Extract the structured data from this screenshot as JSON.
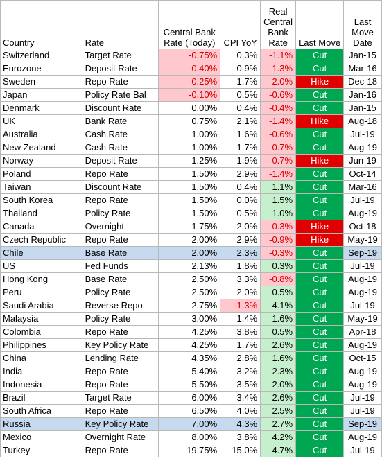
{
  "headers": {
    "country": "Country",
    "rate": "Rate",
    "cb_rate": [
      "Central Bank",
      "Rate (Today)"
    ],
    "cpi": "CPI YoY",
    "real_rate": [
      "Real",
      "Central",
      "Bank",
      "Rate"
    ],
    "last_move": "Last Move",
    "last_move_date": [
      "Last",
      "Move",
      "Date"
    ]
  },
  "colors": {
    "negative_tint": "#ffc7ce",
    "positive_tint": "#c6efce",
    "negative_text": "#d40000",
    "cut": "#00a651",
    "hike": "#e00000",
    "highlight_row": "#c5d9ef"
  },
  "rows": [
    {
      "country": "Switzerland",
      "rate": "Target Rate",
      "cb": "-0.75%",
      "cpi": "0.3%",
      "real": "-1.1%",
      "move": "Cut",
      "date": "Jan-15"
    },
    {
      "country": "Eurozone",
      "rate": "Deposit Rate",
      "cb": "-0.40%",
      "cpi": "0.9%",
      "real": "-1.3%",
      "move": "Cut",
      "date": "Mar-16"
    },
    {
      "country": "Sweden",
      "rate": "Repo Rate",
      "cb": "-0.25%",
      "cpi": "1.7%",
      "real": "-2.0%",
      "move": "Hike",
      "date": "Dec-18"
    },
    {
      "country": "Japan",
      "rate": "Policy Rate Bal",
      "cb": "-0.10%",
      "cpi": "0.5%",
      "real": "-0.6%",
      "move": "Cut",
      "date": "Jan-16"
    },
    {
      "country": "Denmark",
      "rate": "Discount Rate",
      "cb": "0.00%",
      "cpi": "0.4%",
      "real": "-0.4%",
      "move": "Cut",
      "date": "Jan-15"
    },
    {
      "country": "UK",
      "rate": "Bank Rate",
      "cb": "0.75%",
      "cpi": "2.1%",
      "real": "-1.4%",
      "move": "Hike",
      "date": "Aug-18"
    },
    {
      "country": "Australia",
      "rate": "Cash Rate",
      "cb": "1.00%",
      "cpi": "1.6%",
      "real": "-0.6%",
      "move": "Cut",
      "date": "Jul-19"
    },
    {
      "country": "New Zealand",
      "rate": "Cash Rate",
      "cb": "1.00%",
      "cpi": "1.7%",
      "real": "-0.7%",
      "move": "Cut",
      "date": "Aug-19"
    },
    {
      "country": "Norway",
      "rate": "Deposit Rate",
      "cb": "1.25%",
      "cpi": "1.9%",
      "real": "-0.7%",
      "move": "Hike",
      "date": "Jun-19"
    },
    {
      "country": "Poland",
      "rate": "Repo Rate",
      "cb": "1.50%",
      "cpi": "2.9%",
      "real": "-1.4%",
      "move": "Cut",
      "date": "Oct-14"
    },
    {
      "country": "Taiwan",
      "rate": "Discount Rate",
      "cb": "1.50%",
      "cpi": "0.4%",
      "real": "1.1%",
      "move": "Cut",
      "date": "Mar-16"
    },
    {
      "country": "South Korea",
      "rate": "Repo Rate",
      "cb": "1.50%",
      "cpi": "0.0%",
      "real": "1.5%",
      "move": "Cut",
      "date": "Jul-19"
    },
    {
      "country": "Thailand",
      "rate": "Policy Rate",
      "cb": "1.50%",
      "cpi": "0.5%",
      "real": "1.0%",
      "move": "Cut",
      "date": "Aug-19"
    },
    {
      "country": "Canada",
      "rate": "Overnight",
      "cb": "1.75%",
      "cpi": "2.0%",
      "real": "-0.3%",
      "move": "Hike",
      "date": "Oct-18"
    },
    {
      "country": "Czech Republic",
      "rate": "Repo Rate",
      "cb": "2.00%",
      "cpi": "2.9%",
      "real": "-0.9%",
      "move": "Hike",
      "date": "May-19"
    },
    {
      "country": "Chile",
      "rate": "Base Rate",
      "cb": "2.00%",
      "cpi": "2.3%",
      "real": "-0.3%",
      "move": "Cut",
      "date": "Sep-19",
      "highlight": true
    },
    {
      "country": "US",
      "rate": "Fed Funds",
      "cb": "2.13%",
      "cpi": "1.8%",
      "real": "0.3%",
      "move": "Cut",
      "date": "Jul-19"
    },
    {
      "country": "Hong Kong",
      "rate": "Base Rate",
      "cb": "2.50%",
      "cpi": "3.3%",
      "real": "-0.8%",
      "move": "Cut",
      "date": "Aug-19"
    },
    {
      "country": "Peru",
      "rate": "Policy Rate",
      "cb": "2.50%",
      "cpi": "2.0%",
      "real": "0.5%",
      "move": "Cut",
      "date": "Aug-19"
    },
    {
      "country": "Saudi Arabia",
      "rate": "Reverse Repo",
      "cb": "2.75%",
      "cpi": "-1.3%",
      "real": "4.1%",
      "move": "Cut",
      "date": "Jul-19"
    },
    {
      "country": "Malaysia",
      "rate": "Policy Rate",
      "cb": "3.00%",
      "cpi": "1.4%",
      "real": "1.6%",
      "move": "Cut",
      "date": "May-19"
    },
    {
      "country": "Colombia",
      "rate": "Repo Rate",
      "cb": "4.25%",
      "cpi": "3.8%",
      "real": "0.5%",
      "move": "Cut",
      "date": "Apr-18"
    },
    {
      "country": "Philippines",
      "rate": "Key Policy Rate",
      "cb": "4.25%",
      "cpi": "1.7%",
      "real": "2.6%",
      "move": "Cut",
      "date": "Aug-19"
    },
    {
      "country": "China",
      "rate": "Lending Rate",
      "cb": "4.35%",
      "cpi": "2.8%",
      "real": "1.6%",
      "move": "Cut",
      "date": "Oct-15"
    },
    {
      "country": "India",
      "rate": "Repo Rate",
      "cb": "5.40%",
      "cpi": "3.2%",
      "real": "2.3%",
      "move": "Cut",
      "date": "Aug-19"
    },
    {
      "country": "Indonesia",
      "rate": "Repo Rate",
      "cb": "5.50%",
      "cpi": "3.5%",
      "real": "2.0%",
      "move": "Cut",
      "date": "Aug-19"
    },
    {
      "country": "Brazil",
      "rate": "Target Rate",
      "cb": "6.00%",
      "cpi": "3.4%",
      "real": "2.6%",
      "move": "Cut",
      "date": "Jul-19"
    },
    {
      "country": "South Africa",
      "rate": "Repo Rate",
      "cb": "6.50%",
      "cpi": "4.0%",
      "real": "2.5%",
      "move": "Cut",
      "date": "Jul-19"
    },
    {
      "country": "Russia",
      "rate": "Key Policy Rate",
      "cb": "7.00%",
      "cpi": "4.3%",
      "real": "2.7%",
      "move": "Cut",
      "date": "Sep-19",
      "highlight": true
    },
    {
      "country": "Mexico",
      "rate": "Overnight Rate",
      "cb": "8.00%",
      "cpi": "3.8%",
      "real": "4.2%",
      "move": "Cut",
      "date": "Aug-19"
    },
    {
      "country": "Turkey",
      "rate": "Repo Rate",
      "cb": "19.75%",
      "cpi": "15.0%",
      "real": "4.7%",
      "move": "Cut",
      "date": "Jul-19"
    }
  ]
}
